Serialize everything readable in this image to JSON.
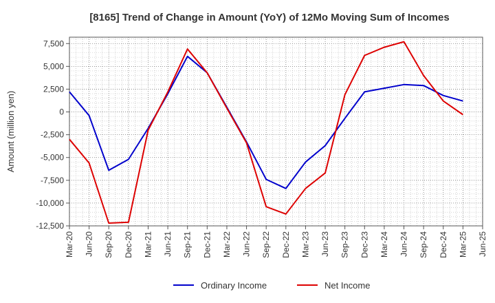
{
  "chart_data": {
    "type": "line",
    "title": "[8165]  Trend of Change in Amount (YoY) of 12Mo Moving Sum of Incomes",
    "ylabel": "Amount (million yen)",
    "xlabel": "",
    "x_ticks": [
      "Mar-20",
      "Jun-20",
      "Sep-20",
      "Dec-20",
      "Mar-21",
      "Jun-21",
      "Sep-21",
      "Dec-21",
      "Mar-22",
      "Jun-22",
      "Sep-22",
      "Dec-22",
      "Mar-23",
      "Jun-23",
      "Sep-23",
      "Dec-23",
      "Mar-24",
      "Jun-24",
      "Sep-24",
      "Dec-24",
      "Mar-25",
      "Jun-25"
    ],
    "y_ticks": [
      7500,
      5000,
      2500,
      0,
      -2500,
      -5000,
      -7500,
      -10000,
      -12500
    ],
    "y_tick_labels": [
      "7,500",
      "5,000",
      "2,500",
      "0",
      "-2,500",
      "-5,000",
      "-7,500",
      "-10,000",
      "-12,500"
    ],
    "ylim": [
      -12500,
      8200
    ],
    "grid": true,
    "legend_position": "bottom",
    "colors": {
      "ordinary": "#0000cc",
      "net": "#dd0000",
      "grid": "#888888",
      "axis": "#555555"
    },
    "series": [
      {
        "name": "Ordinary Income",
        "color": "#0000cc",
        "values": [
          2200,
          -400,
          -6400,
          -5200,
          -1800,
          2000,
          6100,
          4300,
          500,
          -3300,
          -7400,
          -8400,
          -5500,
          -3700,
          -700,
          2200,
          2600,
          3000,
          2900,
          1800,
          1200,
          null
        ]
      },
      {
        "name": "Net Income",
        "color": "#dd0000",
        "values": [
          -3000,
          -5600,
          -12200,
          -12100,
          -2000,
          2200,
          6900,
          4300,
          400,
          -3400,
          -10400,
          -11200,
          -8400,
          -6700,
          1900,
          6200,
          7100,
          7700,
          4000,
          1200,
          -300,
          null
        ]
      }
    ]
  }
}
